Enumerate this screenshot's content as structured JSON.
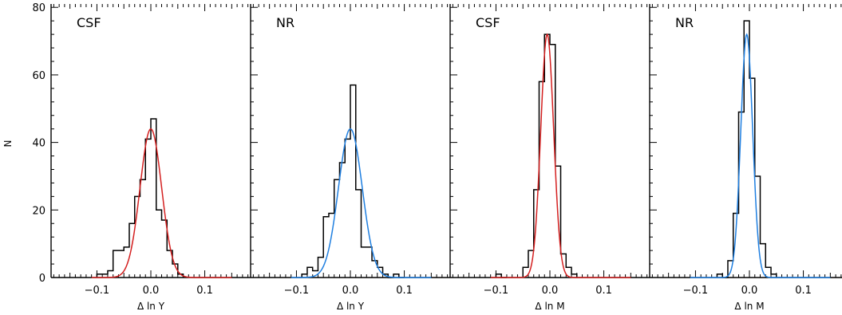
{
  "chart_data": {
    "type": "bar",
    "ylabel": "N",
    "ylim": [
      0,
      81
    ],
    "xlim": [
      -0.185,
      0.185
    ],
    "yticks": [
      0,
      20,
      40,
      60,
      80
    ],
    "xticks": [
      -0.1,
      0.0,
      0.1
    ],
    "xtick_labels": [
      "−0.1",
      "0.0",
      "0.1"
    ],
    "ytick_labels": [
      "0",
      "20",
      "40",
      "60",
      "80"
    ],
    "bin_width": 0.01,
    "colors": {
      "CSF": "#d42020",
      "NR": "#1f7fe0",
      "histogram": "#000000"
    },
    "panels": [
      {
        "label": "CSF",
        "xlabel": "Δ ln Y",
        "fit_color": "#d42020",
        "histogram": {
          "bin_lefts": [
            -0.1,
            -0.09,
            -0.08,
            -0.07,
            -0.06,
            -0.05,
            -0.04,
            -0.03,
            -0.02,
            -0.01,
            0.0,
            0.01,
            0.02,
            0.03,
            0.04,
            0.05
          ],
          "counts": [
            1,
            1,
            2,
            8,
            8,
            9,
            16,
            24,
            29,
            41,
            47,
            20,
            17,
            8,
            4,
            1
          ]
        },
        "fit": {
          "amplitude": 44,
          "mean": 0.0,
          "sigma": 0.02
        }
      },
      {
        "label": "NR",
        "xlabel": "Δ ln Y",
        "fit_color": "#1f7fe0",
        "histogram": {
          "bin_lefts": [
            -0.09,
            -0.08,
            -0.07,
            -0.06,
            -0.05,
            -0.04,
            -0.03,
            -0.02,
            -0.01,
            0.0,
            0.01,
            0.02,
            0.03,
            0.04,
            0.05,
            0.06,
            0.07,
            0.08,
            0.09
          ],
          "counts": [
            1,
            3,
            2,
            6,
            18,
            19,
            29,
            34,
            41,
            57,
            26,
            9,
            9,
            5,
            3,
            1,
            0,
            1,
            0
          ]
        },
        "fit": {
          "amplitude": 44,
          "mean": 0.0,
          "sigma": 0.022
        }
      },
      {
        "label": "CSF",
        "xlabel": "Δ ln M",
        "fit_color": "#d42020",
        "histogram": {
          "bin_lefts": [
            -0.1,
            -0.09,
            -0.05,
            -0.04,
            -0.03,
            -0.02,
            -0.01,
            0.0,
            0.01,
            0.02,
            0.03,
            0.04
          ],
          "counts": [
            1,
            0,
            3,
            8,
            26,
            58,
            72,
            69,
            33,
            7,
            3,
            1
          ]
        },
        "fit": {
          "amplitude": 72,
          "mean": -0.005,
          "sigma": 0.012
        }
      },
      {
        "label": "NR",
        "xlabel": "Δ ln M",
        "fit_color": "#1f7fe0",
        "histogram": {
          "bin_lefts": [
            -0.06,
            -0.05,
            -0.04,
            -0.03,
            -0.02,
            -0.01,
            0.0,
            0.01,
            0.02,
            0.03,
            0.04
          ],
          "counts": [
            1,
            0,
            5,
            19,
            49,
            76,
            59,
            30,
            10,
            3,
            1
          ]
        },
        "fit": {
          "amplitude": 72,
          "mean": -0.005,
          "sigma": 0.011
        }
      }
    ]
  }
}
